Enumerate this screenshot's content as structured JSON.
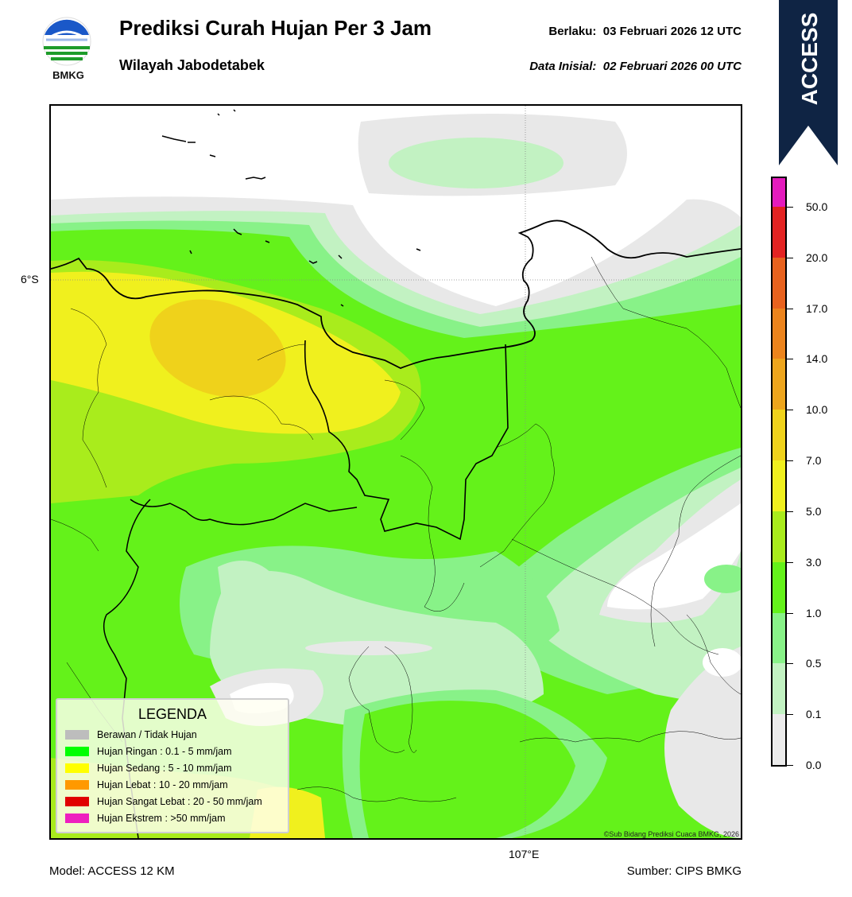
{
  "header": {
    "title": "Prediksi Curah Hujan Per 3 Jam",
    "subtitle": "Wilayah Jabodetabek",
    "valid_label": "Berlaku:",
    "valid_time": "03 Februari 2026 12 UTC",
    "initial_label": "Data Inisial:",
    "initial_time": "02 Februari 2026 00 UTC"
  },
  "logo": {
    "text": "BMKG",
    "icon": "bmkg-logo"
  },
  "ribbon": {
    "text": "ACCESS",
    "color": "#0f2444"
  },
  "map": {
    "lat_label": "6°S",
    "lon_label": "107°E",
    "copyright": "©Sub Bidang Prediksi Cuaca BMKG, 2026"
  },
  "legend": {
    "title": "LEGENDA",
    "items": [
      {
        "label": "Berawan / Tidak Hujan",
        "color": "#bdbdbd"
      },
      {
        "label": "Hujan Ringan : 0.1 - 5 mm/jam",
        "color": "#00ff00"
      },
      {
        "label": "Hujan Sedang : 5 - 10 mm/jam",
        "color": "#ffff00"
      },
      {
        "label": "Hujan Lebat : 10 - 20 mm/jam",
        "color": "#ff9900"
      },
      {
        "label": "Hujan Sangat Lebat : 20 - 50 mm/jam",
        "color": "#e00000"
      },
      {
        "label": "Hujan Ekstrem : >50 mm/jam",
        "color": "#ee1fbf"
      }
    ]
  },
  "colorbar": {
    "labels": [
      "0.0",
      "0.1",
      "0.5",
      "1.0",
      "3.0",
      "5.0",
      "7.0",
      "10.0",
      "14.0",
      "17.0",
      "20.0",
      "50.0"
    ],
    "colors": [
      "#ebebeb",
      "#c2f2c2",
      "#88f288",
      "#64f21a",
      "#a9ec1c",
      "#f0f01e",
      "#efd21b",
      "#eda51d",
      "#ec841d",
      "#e8621e",
      "#e32322",
      "#e41bbd"
    ]
  },
  "footer": {
    "model": "Model: ACCESS 12 KM",
    "source": "Sumber: CIPS BMKG"
  }
}
